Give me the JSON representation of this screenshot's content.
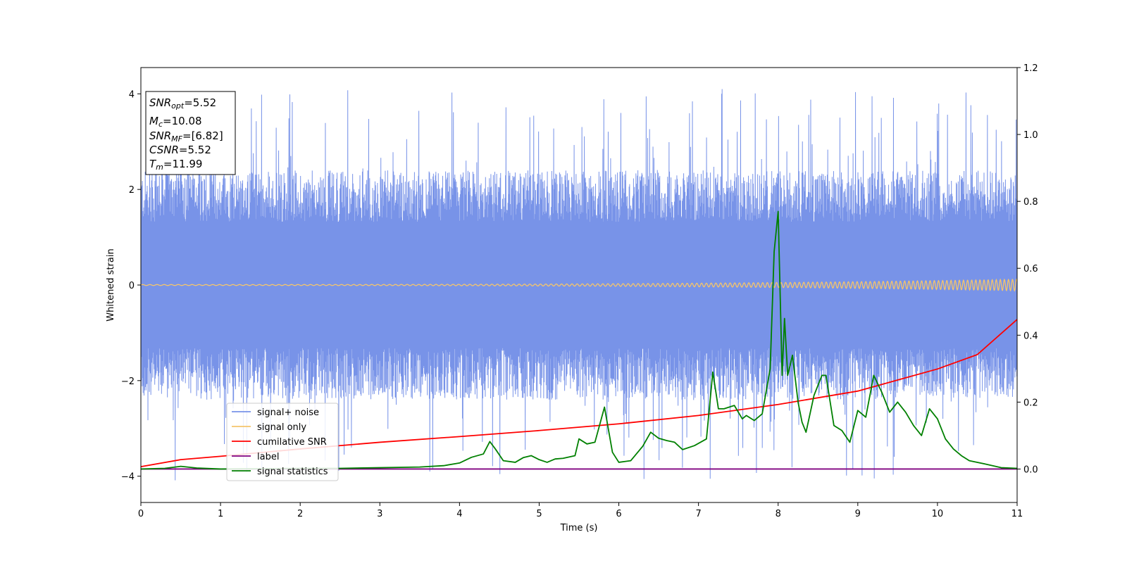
{
  "chart_data": {
    "type": "line",
    "title": "",
    "xlabel": "Time (s)",
    "ylabel": "Whitened strain",
    "y2label": "",
    "xlim": [
      0,
      11
    ],
    "ylim": [
      -4.55,
      4.55
    ],
    "y2lim": [
      -0.1,
      1.2
    ],
    "x_ticks": [
      "0",
      "1",
      "2",
      "3",
      "4",
      "5",
      "6",
      "7",
      "8",
      "9",
      "10",
      "11"
    ],
    "y_ticks": [
      "−4",
      "−2",
      "0",
      "2",
      "4"
    ],
    "y2_ticks": [
      "0.0",
      "0.2",
      "0.4",
      "0.6",
      "0.8",
      "1.0",
      "1.2"
    ],
    "annotation": {
      "lines": [
        {
          "base": "SNR",
          "sub": "opt",
          "value": "=5.52"
        },
        {
          "base": "M",
          "sub": "c",
          "value": "=10.08"
        },
        {
          "base": "SNR",
          "sub": "MF",
          "value": "=[6.82]"
        },
        {
          "base": "CSNR",
          "sub": "",
          "value": "=5.52"
        },
        {
          "base": "T",
          "sub": "m",
          "value": "=11.99"
        }
      ]
    },
    "legend_position": "lower-left",
    "series": [
      {
        "name": "signal+ noise",
        "color": "#7893e8",
        "axis": "left",
        "kind": "noise-band",
        "band": {
          "typical_abs": 2.4,
          "peak_abs": 4.1,
          "center": 0.0
        }
      },
      {
        "name": "signal only",
        "color": "#f5c56b",
        "axis": "left",
        "kind": "chirp",
        "amplitude_start": 0.01,
        "amplitude_end": 0.12
      },
      {
        "name": "cumilative SNR",
        "color": "#ff0000",
        "axis": "right",
        "x": [
          0,
          0.5,
          1,
          2,
          3,
          4,
          5,
          6,
          7,
          8,
          9,
          10,
          10.5,
          11
        ],
        "y": [
          0.007,
          0.028,
          0.038,
          0.06,
          0.08,
          0.097,
          0.115,
          0.135,
          0.16,
          0.193,
          0.233,
          0.299,
          0.342,
          0.447
        ]
      },
      {
        "name": "label",
        "color": "#800080",
        "axis": "right",
        "x": [
          0,
          11
        ],
        "y": [
          0.0,
          0.0
        ]
      },
      {
        "name": "signal statistics",
        "color": "#008000",
        "axis": "right",
        "x": [
          0,
          0.3,
          0.5,
          0.7,
          1.0,
          1.5,
          2.0,
          2.5,
          3.0,
          3.5,
          3.8,
          4.0,
          4.15,
          4.3,
          4.38,
          4.45,
          4.55,
          4.7,
          4.8,
          4.9,
          5.0,
          5.1,
          5.2,
          5.3,
          5.45,
          5.5,
          5.6,
          5.7,
          5.82,
          5.92,
          6.0,
          6.15,
          6.3,
          6.4,
          6.5,
          6.6,
          6.7,
          6.8,
          6.95,
          7.1,
          7.18,
          7.25,
          7.32,
          7.45,
          7.55,
          7.6,
          7.7,
          7.8,
          7.9,
          7.95,
          8.0,
          8.05,
          8.08,
          8.12,
          8.18,
          8.25,
          8.3,
          8.35,
          8.45,
          8.55,
          8.6,
          8.7,
          8.8,
          8.9,
          9.0,
          9.1,
          9.2,
          9.3,
          9.4,
          9.5,
          9.6,
          9.7,
          9.8,
          9.9,
          10.0,
          10.1,
          10.2,
          10.3,
          10.4,
          10.6,
          10.8,
          11.0
        ],
        "y": [
          0.0,
          0.002,
          0.008,
          0.003,
          0.0,
          0.001,
          0.002,
          0.002,
          0.004,
          0.006,
          0.01,
          0.018,
          0.035,
          0.045,
          0.082,
          0.06,
          0.025,
          0.02,
          0.034,
          0.04,
          0.028,
          0.02,
          0.03,
          0.032,
          0.04,
          0.09,
          0.075,
          0.08,
          0.185,
          0.05,
          0.02,
          0.025,
          0.068,
          0.11,
          0.092,
          0.085,
          0.08,
          0.058,
          0.07,
          0.09,
          0.29,
          0.18,
          0.18,
          0.19,
          0.15,
          0.16,
          0.145,
          0.165,
          0.3,
          0.65,
          0.77,
          0.28,
          0.45,
          0.28,
          0.34,
          0.2,
          0.14,
          0.11,
          0.22,
          0.28,
          0.28,
          0.13,
          0.115,
          0.08,
          0.175,
          0.155,
          0.28,
          0.23,
          0.17,
          0.2,
          0.17,
          0.13,
          0.1,
          0.18,
          0.15,
          0.09,
          0.06,
          0.04,
          0.025,
          0.015,
          0.004,
          0.002
        ]
      }
    ]
  }
}
